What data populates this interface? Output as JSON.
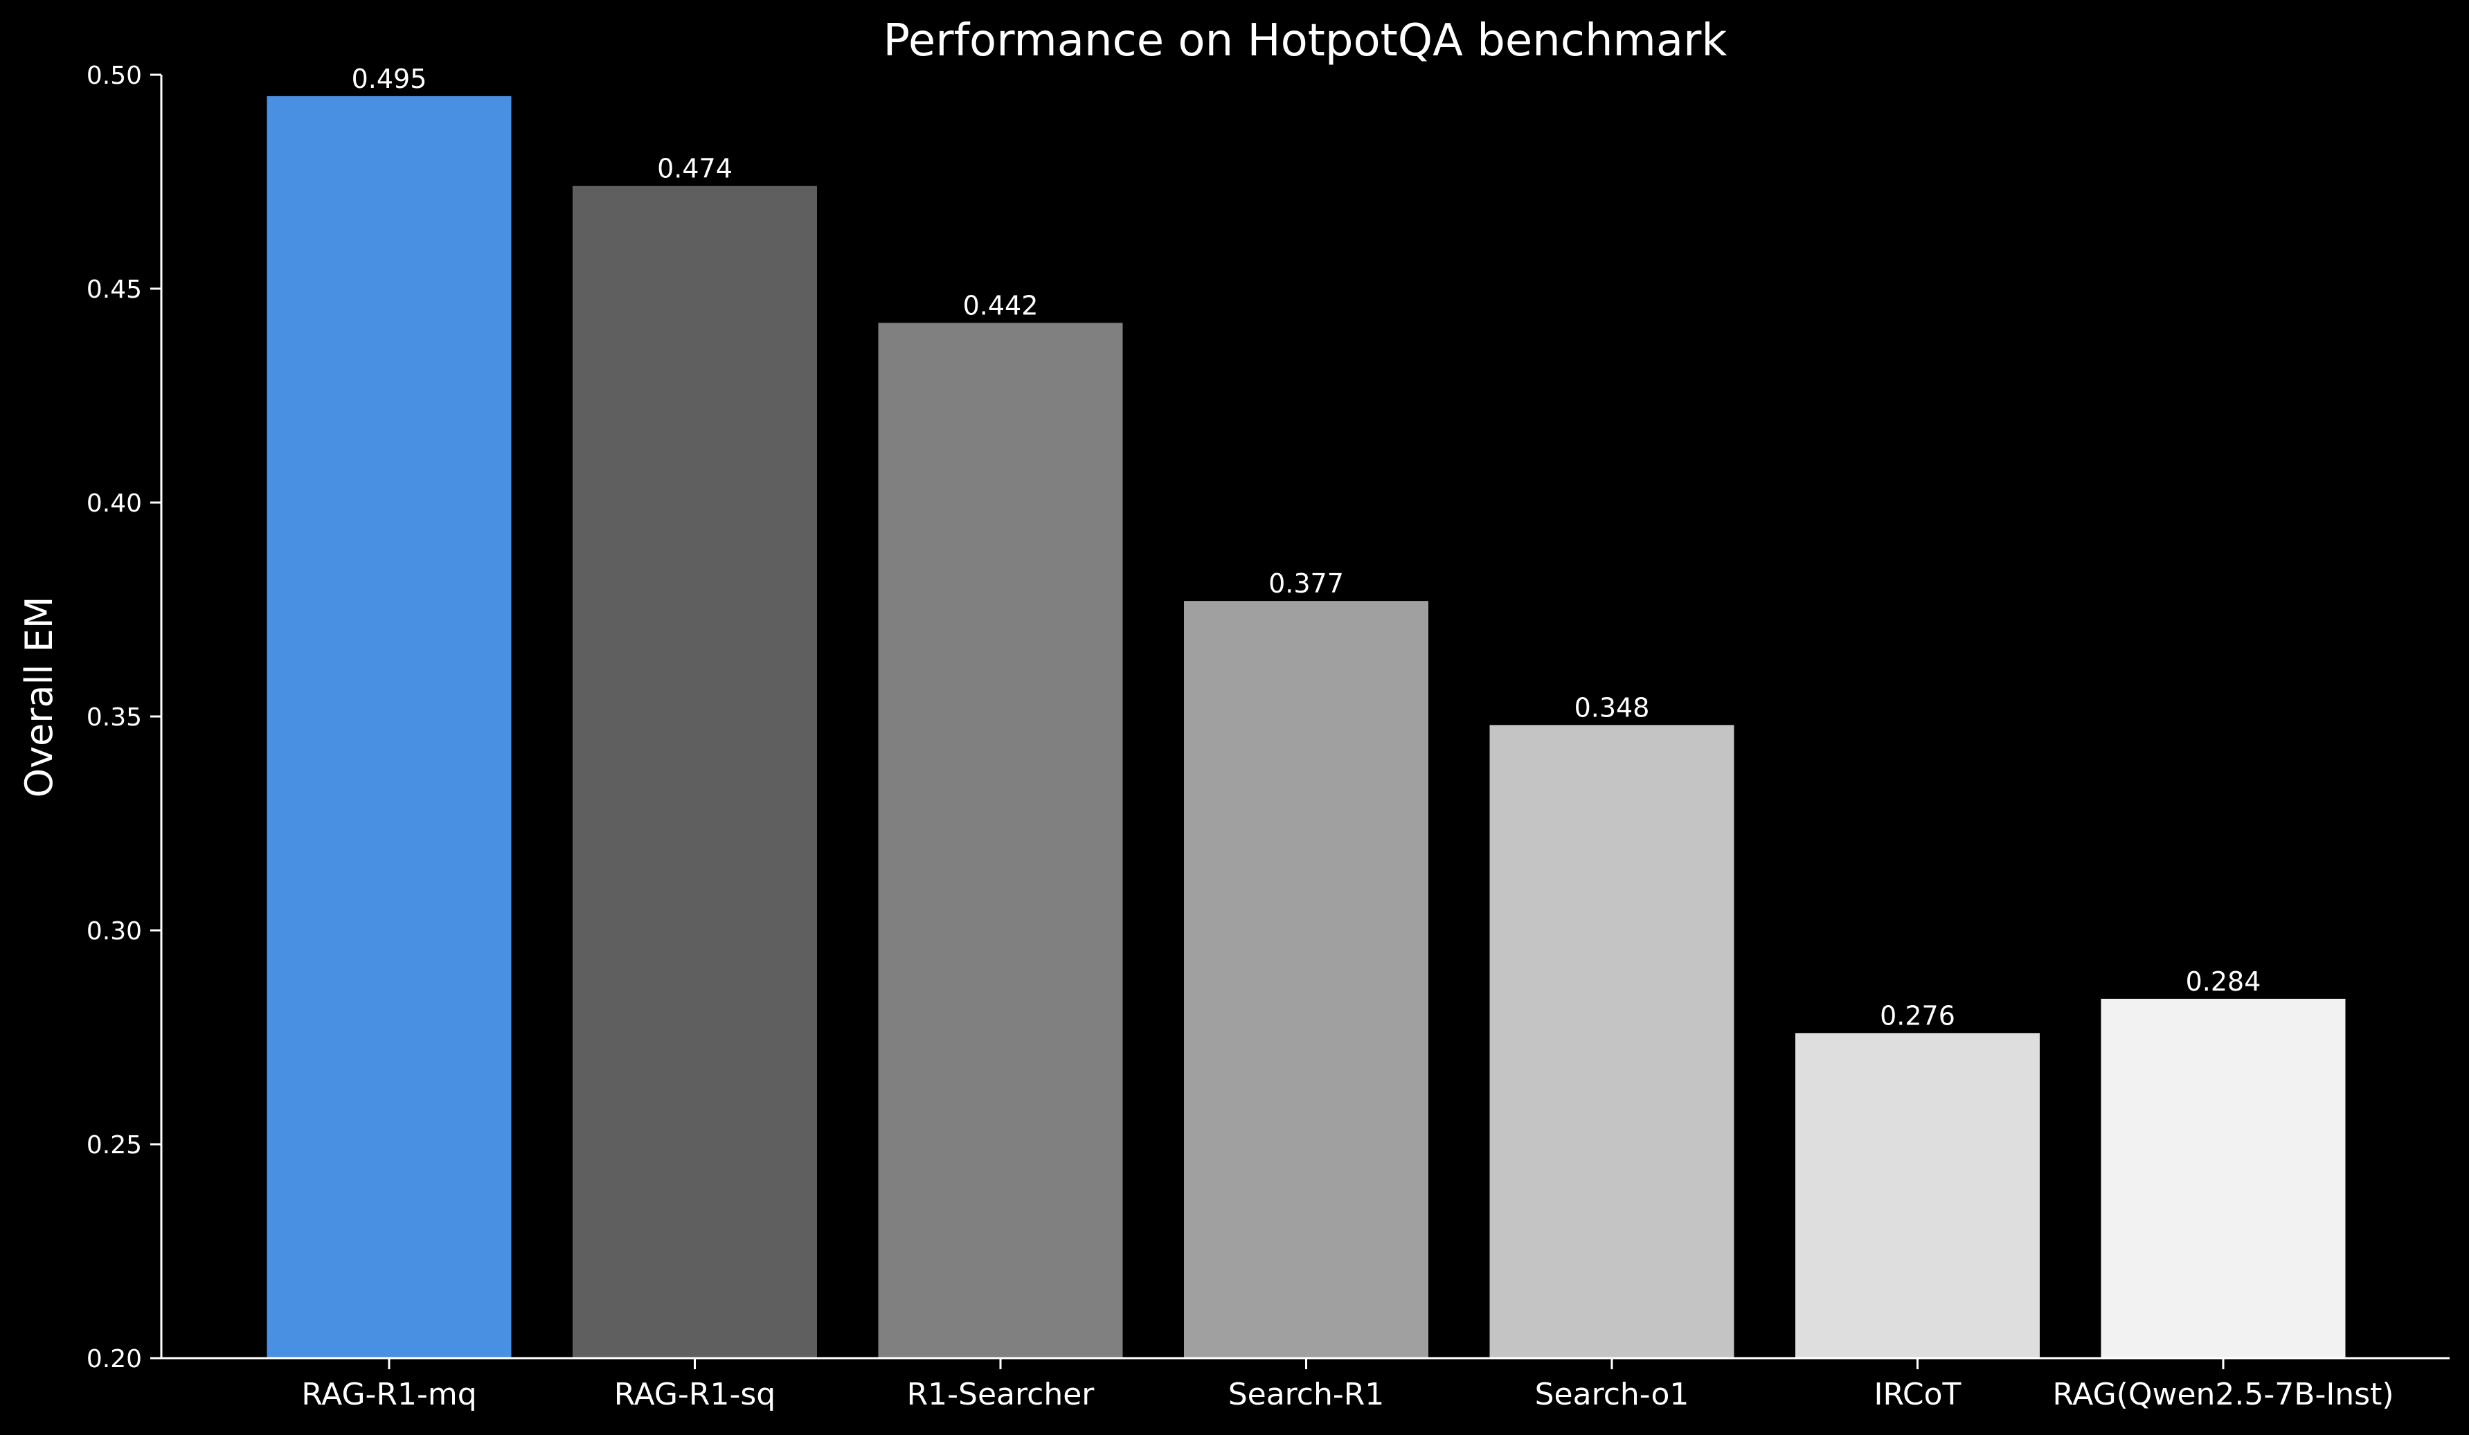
{
  "chart_data": {
    "type": "bar",
    "title": "Performance on HotpotQA benchmark",
    "xlabel": "",
    "ylabel": "Overall EM",
    "ylim": [
      0.2,
      0.5
    ],
    "yticks": [
      "0.20",
      "0.25",
      "0.30",
      "0.35",
      "0.40",
      "0.45",
      "0.50"
    ],
    "categories": [
      "RAG-R1-mq",
      "RAG-R1-sq",
      "R1-Searcher",
      "Search-R1",
      "Search-o1",
      "IRCoT",
      "RAG(Qwen2.5-7B-Inst)"
    ],
    "values": [
      0.495,
      0.474,
      0.442,
      0.377,
      0.348,
      0.276,
      0.284
    ],
    "value_labels": [
      "0.495",
      "0.474",
      "0.442",
      "0.377",
      "0.348",
      "0.276",
      "0.284"
    ],
    "colors": [
      "#4a90e2",
      "#5f5f5f",
      "#808080",
      "#a0a0a0",
      "#c4c4c4",
      "#dedede",
      "#f2f2f2"
    ],
    "background": "#000000",
    "axis_color": "#ffffff",
    "grid": false,
    "legend": "none"
  }
}
